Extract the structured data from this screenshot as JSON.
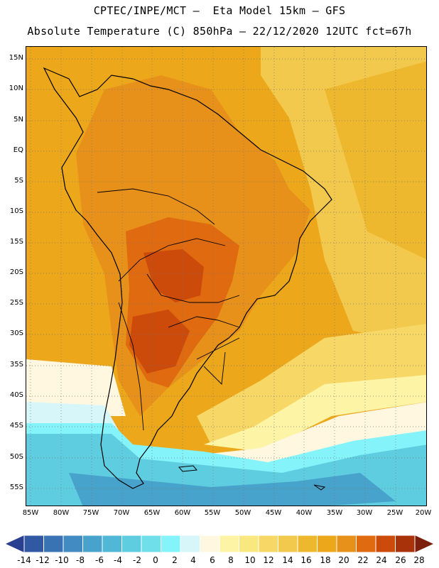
{
  "header": {
    "line1": "CPTEC/INPE/MCT –  Eta Model 15km – GFS",
    "line2": "Absolute Temperature (C) 850hPa – 22/12/2020 12UTC fct=67h"
  },
  "map": {
    "lat_labels": [
      "15N",
      "10N",
      "5N",
      "EQ",
      "5S",
      "10S",
      "15S",
      "20S",
      "25S",
      "30S",
      "35S",
      "40S",
      "45S",
      "50S",
      "55S"
    ],
    "lon_labels": [
      "85W",
      "80W",
      "75W",
      "70W",
      "65W",
      "60W",
      "55W",
      "50W",
      "45W",
      "40W",
      "35W",
      "30W",
      "25W",
      "20W"
    ],
    "field": "Absolute Temperature at 850hPa (C)"
  },
  "colorbar": {
    "labels": [
      "-14",
      "-12",
      "-10",
      "-8",
      "-6",
      "-4",
      "-2",
      "0",
      "2",
      "4",
      "6",
      "8",
      "10",
      "12",
      "14",
      "16",
      "18",
      "20",
      "22",
      "24",
      "26",
      "28"
    ],
    "colors": [
      "#2a3f8f",
      "#3158a3",
      "#3a73b4",
      "#418ac2",
      "#48a3cc",
      "#50b7d6",
      "#5fcde0",
      "#6fe0ea",
      "#84f4fa",
      "#d6f6fa",
      "#fff7e0",
      "#fdf4a6",
      "#f9e880",
      "#f7d866",
      "#f2c94c",
      "#eeb82e",
      "#eca71a",
      "#e8911a",
      "#df6a10",
      "#cc4a0a",
      "#a8320a",
      "#7d1f0d"
    ]
  }
}
